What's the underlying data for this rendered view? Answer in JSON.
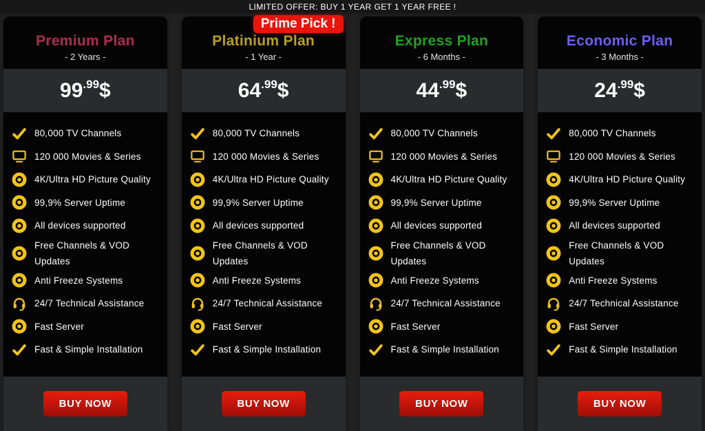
{
  "banner": {
    "text": "LIMITED OFFER: BUY 1 YEAR GET 1 YEAR FREE !"
  },
  "colors": {
    "page_bg": "#212121",
    "banner_bg": "#181818",
    "card_black": "#040404",
    "panel_gray": "#2a2b2c",
    "accent_yellow": "#f3c417",
    "badge_red": "#e9140b",
    "button_red_top": "#ea1c0e",
    "button_red_bottom": "#9c0e05"
  },
  "buy_button_label": "BUY NOW",
  "features": [
    {
      "icon": "check",
      "text": "80,000 TV Channels"
    },
    {
      "icon": "monitor",
      "text": "120 000 Movies & Series"
    },
    {
      "icon": "dot-circle",
      "text": "4K/Ultra HD Picture Quality"
    },
    {
      "icon": "dot-circle",
      "text": "99,9% Server Uptime"
    },
    {
      "icon": "dot-circle",
      "text": "All devices supported"
    },
    {
      "icon": "dot-circle",
      "text": "Free Channels & VOD\nUpdates"
    },
    {
      "icon": "dot-circle",
      "text": "Anti Freeze Systems"
    },
    {
      "icon": "headset",
      "text": "24/7 Technical Assistance"
    },
    {
      "icon": "dot-circle",
      "text": "Fast Server"
    },
    {
      "icon": "check",
      "text": "Fast & Simple Installation"
    }
  ],
  "plans": [
    {
      "title": "Premium Plan",
      "title_color": "#b12b4e",
      "duration": "- 2 Years -",
      "price": {
        "amount": "99",
        "cents": ".99",
        "currency": "$"
      }
    },
    {
      "title": "Platinium Plan",
      "title_color": "#bba01e",
      "duration": "- 1 Year -",
      "badge": "Prime Pick !",
      "price": {
        "amount": "64",
        "cents": ".99",
        "currency": "$"
      }
    },
    {
      "title": "Express Plan",
      "title_color": "#20a320",
      "duration": "- 6 Months -",
      "price": {
        "amount": "44",
        "cents": ".99",
        "currency": "$"
      }
    },
    {
      "title": "Economic Plan",
      "title_color": "#6f5cff",
      "duration": "- 3 Months -",
      "price": {
        "amount": "24",
        "cents": ".99",
        "currency": "$"
      }
    }
  ]
}
